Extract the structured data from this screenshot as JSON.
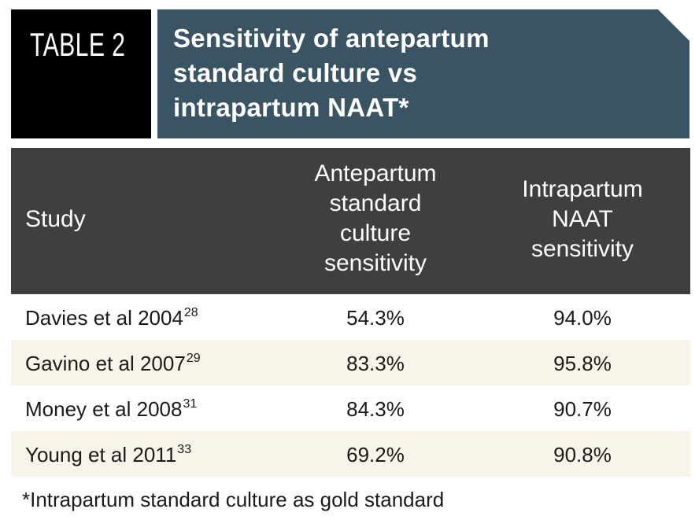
{
  "label": "TABLE 2",
  "title_lines": [
    "Sensitivity of antepartum",
    "standard culture vs",
    "intrapartum NAAT*"
  ],
  "columns": {
    "study": "Study",
    "antepartum": [
      "Antepartum",
      "standard",
      "culture",
      "sensitivity"
    ],
    "intrapartum": [
      "Intrapartum",
      "NAAT",
      "sensitivity"
    ]
  },
  "rows": [
    {
      "study": "Davies et al 2004",
      "ref": "28",
      "antepartum": "54.3%",
      "intrapartum": "94.0%"
    },
    {
      "study": "Gavino et al 2007",
      "ref": "29",
      "antepartum": "83.3%",
      "intrapartum": "95.8%"
    },
    {
      "study": "Money et al 2008",
      "ref": "31",
      "antepartum": "84.3%",
      "intrapartum": "90.7%"
    },
    {
      "study": "Young et al 2011",
      "ref": "33",
      "antepartum": "69.2%",
      "intrapartum": "90.8%"
    }
  ],
  "footnote": "*Intrapartum standard culture as gold standard",
  "colors": {
    "label_bg": "#000000",
    "title_bg": "#395563",
    "header_bg": "#3f3f3f",
    "row_alt_bg": "#f9f4e9"
  }
}
